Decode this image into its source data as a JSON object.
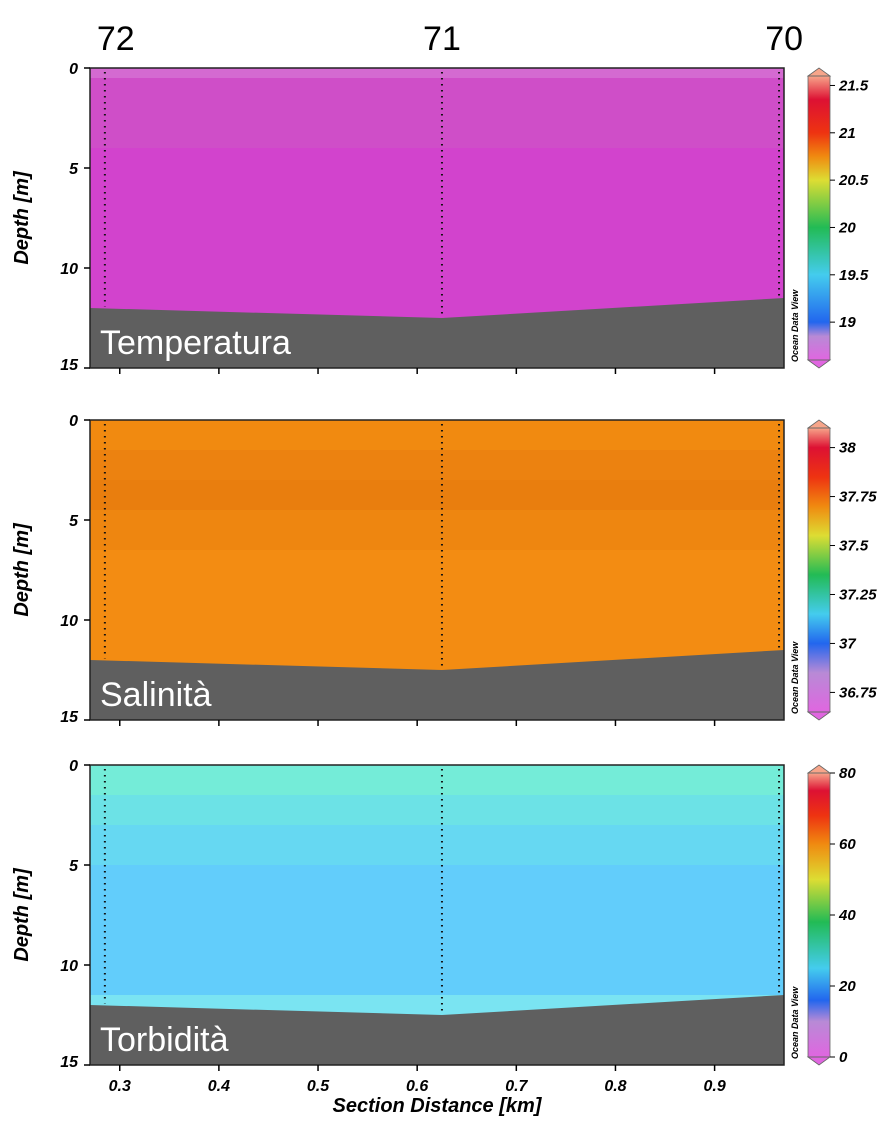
{
  "chart_data": {
    "type": "heatmap",
    "stations": [
      {
        "label": "72",
        "distance": 0.285
      },
      {
        "label": "71",
        "distance": 0.625
      },
      {
        "label": "70",
        "distance": 0.965
      }
    ],
    "xlabel": "Section Distance [km]",
    "xlim": [
      0.27,
      0.97
    ],
    "xticks": [
      0.3,
      0.4,
      0.5,
      0.6,
      0.7,
      0.8,
      0.9
    ],
    "watermark": "Ocean Data View",
    "panels": [
      {
        "label": "Temperatura",
        "ylabel": "Depth [m]",
        "ylim": [
          0,
          15
        ],
        "yticks": [
          0,
          5,
          10,
          15
        ],
        "bottom_depth": [
          {
            "x": 0.27,
            "depth": 12.0
          },
          {
            "x": 0.625,
            "depth": 12.5
          },
          {
            "x": 0.97,
            "depth": 11.5
          }
        ],
        "colorbar": {
          "min": 18.6,
          "max": 21.6,
          "ticks": [
            "21.5",
            "21",
            "20.5",
            "20",
            "19.5",
            "19"
          ],
          "stops": [
            {
              "value": 18.6,
              "color": "#e066e0"
            },
            {
              "value": 18.85,
              "color": "#b88ad6"
            },
            {
              "value": 19.0,
              "color": "#2266ee"
            },
            {
              "value": 19.5,
              "color": "#44ccee"
            },
            {
              "value": 20.0,
              "color": "#22bb55"
            },
            {
              "value": 20.5,
              "color": "#dddd33"
            },
            {
              "value": 20.75,
              "color": "#f08a10"
            },
            {
              "value": 21.0,
              "color": "#ee3311"
            },
            {
              "value": 21.35,
              "color": "#dd1133"
            },
            {
              "value": 21.6,
              "color": "#f7a58a"
            }
          ]
        },
        "layers": [
          {
            "from": 0,
            "to": 0.5,
            "color": "#d46ad1"
          },
          {
            "from": 0.5,
            "to": 4.0,
            "color": "#cf4ec8"
          },
          {
            "from": 4.0,
            "to": 15.0,
            "color": "#d243cd"
          }
        ]
      },
      {
        "label": "Salinità",
        "ylabel": "Depth [m]",
        "ylim": [
          0,
          15
        ],
        "yticks": [
          0,
          5,
          10,
          15
        ],
        "bottom_depth": [
          {
            "x": 0.27,
            "depth": 12.0
          },
          {
            "x": 0.625,
            "depth": 12.5
          },
          {
            "x": 0.97,
            "depth": 11.5
          }
        ],
        "colorbar": {
          "min": 36.65,
          "max": 38.1,
          "ticks": [
            "38",
            "37.75",
            "37.5",
            "37.25",
            "37",
            "36.75"
          ],
          "stops": [
            {
              "value": 36.65,
              "color": "#e066e0"
            },
            {
              "value": 36.85,
              "color": "#b88ad6"
            },
            {
              "value": 37.0,
              "color": "#2266ee"
            },
            {
              "value": 37.15,
              "color": "#44ccee"
            },
            {
              "value": 37.35,
              "color": "#22bb55"
            },
            {
              "value": 37.55,
              "color": "#dddd33"
            },
            {
              "value": 37.7,
              "color": "#f08a10"
            },
            {
              "value": 37.85,
              "color": "#ee3311"
            },
            {
              "value": 38.0,
              "color": "#dd1133"
            },
            {
              "value": 38.1,
              "color": "#f7a58a"
            }
          ]
        },
        "layers": [
          {
            "from": 0,
            "to": 1.5,
            "color": "#f18a10"
          },
          {
            "from": 1.5,
            "to": 3.0,
            "color": "#ec8210"
          },
          {
            "from": 3.0,
            "to": 4.5,
            "color": "#e97e0e"
          },
          {
            "from": 4.5,
            "to": 6.5,
            "color": "#ee8610"
          },
          {
            "from": 6.5,
            "to": 15.0,
            "color": "#f38c12"
          }
        ]
      },
      {
        "label": "Torbidità",
        "ylabel": "Depth [m]",
        "ylim": [
          0,
          15
        ],
        "yticks": [
          0,
          5,
          10,
          15
        ],
        "bottom_depth": [
          {
            "x": 0.27,
            "depth": 12.0
          },
          {
            "x": 0.625,
            "depth": 12.5
          },
          {
            "x": 0.97,
            "depth": 11.5
          }
        ],
        "colorbar": {
          "min": 0,
          "max": 80,
          "ticks": [
            "80",
            "60",
            "40",
            "20",
            "0"
          ],
          "stops": [
            {
              "value": 0,
              "color": "#e066e0"
            },
            {
              "value": 10,
              "color": "#b88ad6"
            },
            {
              "value": 16,
              "color": "#2266ee"
            },
            {
              "value": 25,
              "color": "#44ccee"
            },
            {
              "value": 38,
              "color": "#22bb55"
            },
            {
              "value": 50,
              "color": "#dddd33"
            },
            {
              "value": 60,
              "color": "#f08a10"
            },
            {
              "value": 68,
              "color": "#ee3311"
            },
            {
              "value": 75,
              "color": "#dd1133"
            },
            {
              "value": 80,
              "color": "#f7a58a"
            }
          ]
        },
        "layers": [
          {
            "from": 0,
            "to": 1.5,
            "color": "#74ecd8"
          },
          {
            "from": 1.5,
            "to": 3.0,
            "color": "#6ce2e6"
          },
          {
            "from": 3.0,
            "to": 5.0,
            "color": "#66d8f2"
          },
          {
            "from": 5.0,
            "to": 11.5,
            "color": "#62cdfb"
          },
          {
            "from": 11.5,
            "to": 15.0,
            "color": "#7ae4f2"
          }
        ]
      }
    ]
  }
}
